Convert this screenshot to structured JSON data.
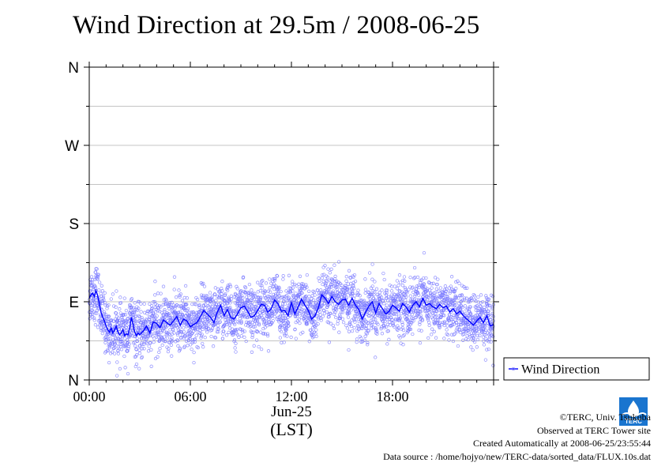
{
  "chart_data": {
    "type": "scatter",
    "title": "Wind Direction at 29.5m / 2008-06-25",
    "xlabel": "(LST)",
    "date_label": "Jun-25",
    "x_unit": "hours (LST)",
    "xlim": [
      0,
      24
    ],
    "x_ticks": [
      {
        "value": 0,
        "label": "00:00"
      },
      {
        "value": 6,
        "label": "06:00"
      },
      {
        "value": 12,
        "label": "12:00"
      },
      {
        "value": 18,
        "label": "18:00"
      }
    ],
    "y_unit": "degrees",
    "ylim": [
      0,
      360
    ],
    "y_ticks": [
      {
        "value": 0,
        "label": "N"
      },
      {
        "value": 90,
        "label": "E"
      },
      {
        "value": 180,
        "label": "S"
      },
      {
        "value": 270,
        "label": "W"
      },
      {
        "value": 360,
        "label": "N"
      }
    ],
    "grid": true,
    "legend_position": "bottom-right, outside plot",
    "series": [
      {
        "name": "Wind Direction",
        "kind": "line (running mean)",
        "color": "#0000ff",
        "x": [
          0.0,
          0.1,
          0.2,
          0.3,
          0.4,
          0.5,
          0.6,
          0.7,
          0.8,
          0.9,
          1.0,
          1.1,
          1.2,
          1.3,
          1.4,
          1.5,
          1.6,
          1.7,
          1.8,
          1.9,
          2.0,
          2.1,
          2.2,
          2.3,
          2.4,
          2.5,
          2.6,
          2.7,
          2.8,
          2.9,
          3.0,
          3.2,
          3.4,
          3.6,
          3.8,
          4.0,
          4.2,
          4.4,
          4.6,
          4.8,
          5.0,
          5.2,
          5.4,
          5.6,
          5.8,
          6.0,
          6.2,
          6.4,
          6.6,
          6.8,
          7.0,
          7.2,
          7.4,
          7.6,
          7.8,
          8.0,
          8.2,
          8.4,
          8.6,
          8.8,
          9.0,
          9.2,
          9.4,
          9.6,
          9.8,
          10.0,
          10.2,
          10.4,
          10.6,
          10.8,
          11.0,
          11.2,
          11.4,
          11.6,
          11.8,
          12.0,
          12.2,
          12.4,
          12.6,
          12.8,
          13.0,
          13.2,
          13.4,
          13.6,
          13.8,
          14.0,
          14.2,
          14.4,
          14.6,
          14.8,
          15.0,
          15.2,
          15.4,
          15.6,
          15.8,
          16.0,
          16.2,
          16.4,
          16.6,
          16.8,
          17.0,
          17.2,
          17.4,
          17.6,
          17.8,
          18.0,
          18.2,
          18.4,
          18.6,
          18.8,
          19.0,
          19.2,
          19.4,
          19.6,
          19.8,
          20.0,
          20.2,
          20.4,
          20.6,
          20.8,
          21.0,
          21.2,
          21.4,
          21.6,
          21.8,
          22.0,
          22.2,
          22.4,
          22.6,
          22.8,
          23.0,
          23.2,
          23.4,
          23.6,
          23.8,
          24.0
        ],
        "values": [
          94,
          98,
          100,
          96,
          103,
          97,
          88,
          78,
          72,
          68,
          62,
          58,
          55,
          60,
          54,
          57,
          62,
          55,
          52,
          54,
          58,
          51,
          53,
          52,
          60,
          72,
          64,
          55,
          51,
          54,
          52,
          56,
          62,
          54,
          67,
          65,
          60,
          69,
          66,
          63,
          68,
          73,
          63,
          70,
          68,
          61,
          64,
          66,
          73,
          80,
          76,
          72,
          66,
          78,
          86,
          74,
          81,
          72,
          70,
          76,
          83,
          85,
          79,
          72,
          74,
          80,
          87,
          86,
          78,
          82,
          92,
          88,
          79,
          80,
          74,
          89,
          76,
          84,
          93,
          86,
          80,
          70,
          74,
          83,
          98,
          94,
          88,
          96,
          90,
          87,
          92,
          93,
          86,
          94,
          86,
          81,
          70,
          78,
          85,
          90,
          77,
          88,
          82,
          76,
          79,
          86,
          83,
          79,
          88,
          84,
          78,
          86,
          90,
          84,
          94,
          86,
          88,
          84,
          82,
          87,
          83,
          85,
          78,
          82,
          76,
          79,
          74,
          70,
          67,
          63,
          68,
          72,
          66,
          74,
          62,
          64
        ],
        "scatter_spread_deg": 25
      }
    ],
    "legend": [
      {
        "label": "Wind Direction",
        "color": "#0000ff"
      }
    ]
  },
  "credits": {
    "copyright": "©TERC, Univ. Tsukuba",
    "observed": "Observed at TERC Tower site",
    "created": "Created Automatically at 2008-06-25/23:55:44",
    "source": "Data source : /home/hojyo/new/TERC-data/sorted_data/FLUX.10s.dat"
  },
  "logo": {
    "text": "TERC",
    "color": "#1a75cf"
  }
}
